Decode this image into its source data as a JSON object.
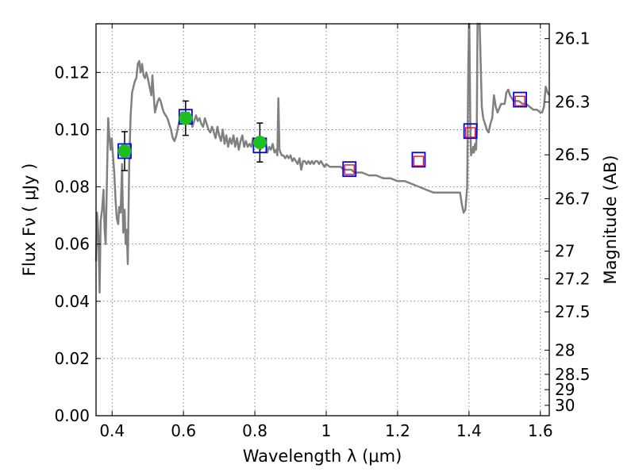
{
  "chart_data": {
    "type": "line",
    "xlabel": "Wavelength  λ (μm)",
    "ylabel": "Flux  Fν  ( μJy )",
    "ylabel_right": "Magnitude (AB)",
    "xlim": [
      0.355,
      1.625
    ],
    "ylim": [
      0.0,
      0.137
    ],
    "grid": true,
    "x_ticks": [
      {
        "value": 0.4,
        "label": "0.4"
      },
      {
        "value": 0.6,
        "label": "0.6"
      },
      {
        "value": 0.8,
        "label": "0.8"
      },
      {
        "value": 1.0,
        "label": "1"
      },
      {
        "value": 1.2,
        "label": "1.2"
      },
      {
        "value": 1.4,
        "label": "1.4"
      },
      {
        "value": 1.6,
        "label": "1.6"
      }
    ],
    "y_ticks": [
      {
        "value": 0.0,
        "label": "0.00"
      },
      {
        "value": 0.02,
        "label": "0.02"
      },
      {
        "value": 0.04,
        "label": "0.04"
      },
      {
        "value": 0.06,
        "label": "0.06"
      },
      {
        "value": 0.08,
        "label": "0.08"
      },
      {
        "value": 0.1,
        "label": "0.10"
      },
      {
        "value": 0.12,
        "label": "0.12"
      }
    ],
    "magnitude_ticks": [
      {
        "mag": 26.1,
        "label": "26.1"
      },
      {
        "mag": 26.3,
        "label": "26.3"
      },
      {
        "mag": 26.5,
        "label": "26.5"
      },
      {
        "mag": 26.7,
        "label": "26.7"
      },
      {
        "mag": 27.0,
        "label": "27"
      },
      {
        "mag": 27.2,
        "label": "27.2"
      },
      {
        "mag": 27.5,
        "label": "27.5"
      },
      {
        "mag": 28.0,
        "label": "28"
      },
      {
        "mag": 28.5,
        "label": "28.5"
      },
      {
        "mag": 29.0,
        "label": "29"
      },
      {
        "mag": 30.0,
        "label": "30"
      }
    ],
    "series": [
      {
        "kind": "model-spectrum",
        "color": "#808080",
        "points": [
          [
            0.355,
            0.054
          ],
          [
            0.358,
            0.071
          ],
          [
            0.362,
            0.062
          ],
          [
            0.365,
            0.043
          ],
          [
            0.368,
            0.068
          ],
          [
            0.372,
            0.072
          ],
          [
            0.376,
            0.079
          ],
          [
            0.379,
            0.065
          ],
          [
            0.382,
            0.06
          ],
          [
            0.386,
            0.085
          ],
          [
            0.389,
            0.104
          ],
          [
            0.392,
            0.098
          ],
          [
            0.396,
            0.093
          ],
          [
            0.399,
            0.097
          ],
          [
            0.403,
            0.09
          ],
          [
            0.406,
            0.085
          ],
          [
            0.41,
            0.075
          ],
          [
            0.413,
            0.069
          ],
          [
            0.417,
            0.067
          ],
          [
            0.42,
            0.073
          ],
          [
            0.424,
            0.071
          ],
          [
            0.428,
            0.088
          ],
          [
            0.431,
            0.064
          ],
          [
            0.435,
            0.072
          ],
          [
            0.438,
            0.06
          ],
          [
            0.441,
            0.065
          ],
          [
            0.444,
            0.053
          ],
          [
            0.448,
            0.088
          ],
          [
            0.452,
            0.105
          ],
          [
            0.456,
            0.113
          ],
          [
            0.46,
            0.115
          ],
          [
            0.464,
            0.117
          ],
          [
            0.468,
            0.118
          ],
          [
            0.472,
            0.123
          ],
          [
            0.476,
            0.124
          ],
          [
            0.48,
            0.12
          ],
          [
            0.484,
            0.123
          ],
          [
            0.488,
            0.119
          ],
          [
            0.492,
            0.118
          ],
          [
            0.496,
            0.12
          ],
          [
            0.5,
            0.118
          ],
          [
            0.505,
            0.115
          ],
          [
            0.51,
            0.112
          ],
          [
            0.513,
            0.119
          ],
          [
            0.516,
            0.113
          ],
          [
            0.52,
            0.106
          ],
          [
            0.524,
            0.108
          ],
          [
            0.528,
            0.11
          ],
          [
            0.532,
            0.111
          ],
          [
            0.536,
            0.11
          ],
          [
            0.54,
            0.108
          ],
          [
            0.545,
            0.106
          ],
          [
            0.55,
            0.105
          ],
          [
            0.555,
            0.104
          ],
          [
            0.56,
            0.102
          ],
          [
            0.565,
            0.1
          ],
          [
            0.57,
            0.097
          ],
          [
            0.575,
            0.096
          ],
          [
            0.58,
            0.098
          ],
          [
            0.585,
            0.101
          ],
          [
            0.59,
            0.104
          ],
          [
            0.595,
            0.106
          ],
          [
            0.6,
            0.106
          ],
          [
            0.605,
            0.105
          ],
          [
            0.61,
            0.104
          ],
          [
            0.615,
            0.106
          ],
          [
            0.62,
            0.104
          ],
          [
            0.625,
            0.101
          ],
          [
            0.63,
            0.103
          ],
          [
            0.635,
            0.105
          ],
          [
            0.64,
            0.103
          ],
          [
            0.645,
            0.104
          ],
          [
            0.65,
            0.102
          ],
          [
            0.655,
            0.101
          ],
          [
            0.66,
            0.104
          ],
          [
            0.665,
            0.102
          ],
          [
            0.67,
            0.1
          ],
          [
            0.675,
            0.099
          ],
          [
            0.68,
            0.101
          ],
          [
            0.685,
            0.099
          ],
          [
            0.69,
            0.097
          ],
          [
            0.695,
            0.101
          ],
          [
            0.7,
            0.098
          ],
          [
            0.705,
            0.096
          ],
          [
            0.71,
            0.1
          ],
          [
            0.715,
            0.095
          ],
          [
            0.72,
            0.098
          ],
          [
            0.725,
            0.094
          ],
          [
            0.73,
            0.097
          ],
          [
            0.735,
            0.095
          ],
          [
            0.74,
            0.098
          ],
          [
            0.745,
            0.094
          ],
          [
            0.75,
            0.097
          ],
          [
            0.755,
            0.093
          ],
          [
            0.76,
            0.096
          ],
          [
            0.765,
            0.098
          ],
          [
            0.77,
            0.094
          ],
          [
            0.775,
            0.096
          ],
          [
            0.78,
            0.094
          ],
          [
            0.785,
            0.095
          ],
          [
            0.79,
            0.094
          ],
          [
            0.795,
            0.097
          ],
          [
            0.8,
            0.095
          ],
          [
            0.805,
            0.094
          ],
          [
            0.81,
            0.096
          ],
          [
            0.815,
            0.093
          ],
          [
            0.82,
            0.095
          ],
          [
            0.825,
            0.094
          ],
          [
            0.83,
            0.096
          ],
          [
            0.835,
            0.092
          ],
          [
            0.84,
            0.094
          ],
          [
            0.845,
            0.093
          ],
          [
            0.85,
            0.095
          ],
          [
            0.855,
            0.092
          ],
          [
            0.86,
            0.093
          ],
          [
            0.863,
            0.091
          ],
          [
            0.866,
            0.111
          ],
          [
            0.869,
            0.093
          ],
          [
            0.872,
            0.092
          ],
          [
            0.876,
            0.091
          ],
          [
            0.88,
            0.091
          ],
          [
            0.885,
            0.09
          ],
          [
            0.89,
            0.091
          ],
          [
            0.895,
            0.09
          ],
          [
            0.9,
            0.091
          ],
          [
            0.905,
            0.089
          ],
          [
            0.91,
            0.09
          ],
          [
            0.915,
            0.089
          ],
          [
            0.92,
            0.088
          ],
          [
            0.925,
            0.09
          ],
          [
            0.93,
            0.086
          ],
          [
            0.935,
            0.089
          ],
          [
            0.94,
            0.089
          ],
          [
            0.945,
            0.088
          ],
          [
            0.95,
            0.089
          ],
          [
            0.955,
            0.088
          ],
          [
            0.96,
            0.089
          ],
          [
            0.965,
            0.088
          ],
          [
            0.97,
            0.089
          ],
          [
            0.975,
            0.089
          ],
          [
            0.98,
            0.088
          ],
          [
            0.985,
            0.089
          ],
          [
            0.99,
            0.088
          ],
          [
            0.995,
            0.087
          ],
          [
            1.0,
            0.088
          ],
          [
            1.01,
            0.087
          ],
          [
            1.02,
            0.087
          ],
          [
            1.03,
            0.087
          ],
          [
            1.04,
            0.087
          ],
          [
            1.05,
            0.086
          ],
          [
            1.06,
            0.086
          ],
          [
            1.07,
            0.086
          ],
          [
            1.08,
            0.085
          ],
          [
            1.1,
            0.085
          ],
          [
            1.12,
            0.084
          ],
          [
            1.14,
            0.084
          ],
          [
            1.16,
            0.083
          ],
          [
            1.18,
            0.083
          ],
          [
            1.2,
            0.082
          ],
          [
            1.22,
            0.082
          ],
          [
            1.24,
            0.081
          ],
          [
            1.26,
            0.08
          ],
          [
            1.28,
            0.079
          ],
          [
            1.3,
            0.078
          ],
          [
            1.32,
            0.078
          ],
          [
            1.34,
            0.078
          ],
          [
            1.36,
            0.078
          ],
          [
            1.375,
            0.078
          ],
          [
            1.38,
            0.074
          ],
          [
            1.385,
            0.071
          ],
          [
            1.39,
            0.072
          ],
          [
            1.395,
            0.08
          ],
          [
            1.398,
            0.12
          ],
          [
            1.4,
            0.137
          ],
          [
            1.401,
            0.137
          ],
          [
            1.404,
            0.1
          ],
          [
            1.406,
            0.091
          ],
          [
            1.408,
            0.093
          ],
          [
            1.41,
            0.092
          ],
          [
            1.412,
            0.094
          ],
          [
            1.414,
            0.092
          ],
          [
            1.417,
            0.095
          ],
          [
            1.42,
            0.093
          ],
          [
            1.422,
            0.101
          ],
          [
            1.424,
            0.137
          ],
          [
            1.43,
            0.137
          ],
          [
            1.436,
            0.108
          ],
          [
            1.44,
            0.104
          ],
          [
            1.445,
            0.102
          ],
          [
            1.45,
            0.1
          ],
          [
            1.455,
            0.099
          ],
          [
            1.46,
            0.102
          ],
          [
            1.465,
            0.104
          ],
          [
            1.47,
            0.112
          ],
          [
            1.475,
            0.108
          ],
          [
            1.48,
            0.106
          ],
          [
            1.49,
            0.109
          ],
          [
            1.5,
            0.109
          ],
          [
            1.505,
            0.113
          ],
          [
            1.51,
            0.114
          ],
          [
            1.515,
            0.112
          ],
          [
            1.52,
            0.111
          ],
          [
            1.525,
            0.11
          ],
          [
            1.53,
            0.11
          ],
          [
            1.54,
            0.11
          ],
          [
            1.55,
            0.109
          ],
          [
            1.56,
            0.109
          ],
          [
            1.57,
            0.108
          ],
          [
            1.58,
            0.107
          ],
          [
            1.59,
            0.107
          ],
          [
            1.6,
            0.106
          ],
          [
            1.605,
            0.106
          ],
          [
            1.61,
            0.108
          ],
          [
            1.615,
            0.115
          ],
          [
            1.62,
            0.113
          ],
          [
            1.625,
            0.112
          ]
        ]
      },
      {
        "kind": "observed",
        "color": "#1fbf1f",
        "points": [
          {
            "x": 0.435,
            "y": 0.0925,
            "yerr": 0.0068
          },
          {
            "x": 0.606,
            "y": 0.104,
            "yerr": 0.006
          },
          {
            "x": 0.814,
            "y": 0.0955,
            "yerr": 0.0068
          }
        ]
      },
      {
        "kind": "model-bandpass",
        "color": "#0000ee",
        "points": [
          {
            "x": 0.435,
            "y": 0.0925
          },
          {
            "x": 0.606,
            "y": 0.1045
          },
          {
            "x": 0.814,
            "y": 0.0945
          },
          {
            "x": 1.065,
            "y": 0.0862
          },
          {
            "x": 1.259,
            "y": 0.0895
          },
          {
            "x": 1.404,
            "y": 0.0995
          },
          {
            "x": 1.543,
            "y": 0.1105
          }
        ]
      },
      {
        "kind": "predicted",
        "color": "#e0102a",
        "points": [
          {
            "x": 1.065,
            "y": 0.086
          },
          {
            "x": 1.259,
            "y": 0.089
          },
          {
            "x": 1.404,
            "y": 0.099
          },
          {
            "x": 1.543,
            "y": 0.11
          }
        ]
      }
    ]
  }
}
